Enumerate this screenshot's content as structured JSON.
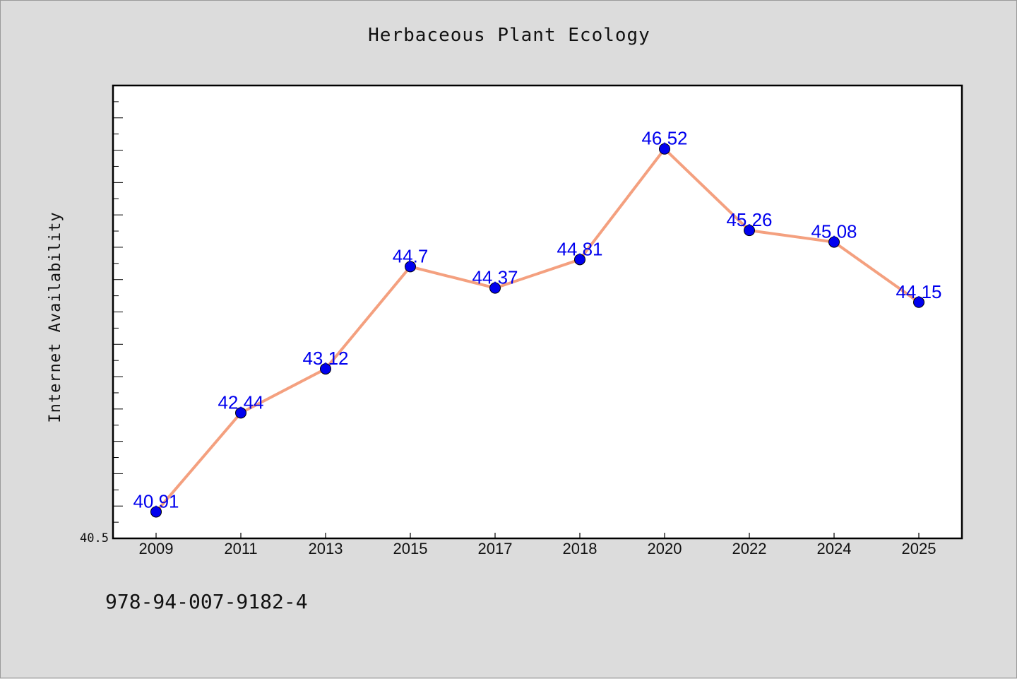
{
  "chart_data": {
    "type": "line",
    "title": "Herbaceous Plant Ecology",
    "xlabel": "",
    "ylabel": "Internet Availability",
    "categories": [
      "2009",
      "2011",
      "2013",
      "2015",
      "2017",
      "2018",
      "2020",
      "2022",
      "2024",
      "2025"
    ],
    "series": [
      {
        "values": [
          40.91,
          42.44,
          43.12,
          44.7,
          44.37,
          44.81,
          46.52,
          45.26,
          45.08,
          44.15
        ]
      }
    ],
    "data_labels": [
      "40.91",
      "42.44",
      "43.12",
      "44.7",
      "44.37",
      "44.81",
      "46.52",
      "45.26",
      "45.08",
      "44.15"
    ],
    "y_tick_labels": [
      "40.5"
    ],
    "ylim": [
      40.5,
      47.5
    ],
    "grid": false,
    "line_color": "#f4a07f",
    "marker_color": "#0000ee",
    "label_color": "#0000ee"
  },
  "footer": {
    "code": "978-94-007-9182-4"
  }
}
